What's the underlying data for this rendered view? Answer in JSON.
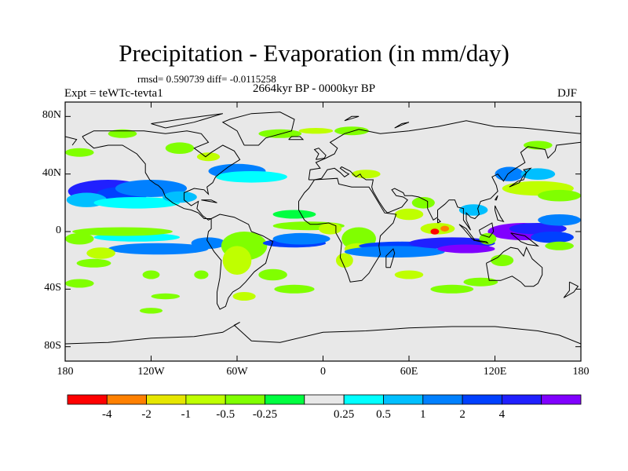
{
  "header": {
    "title": "Precipitation - Evaporation (in mm/day)",
    "stats": "rmsd= 0.590739 diff= -0.0115258",
    "period": "2664kyr BP - 0000kyr BP",
    "experiment": "Expt = teWTc-tevta1",
    "season": "DJF"
  },
  "axes": {
    "y_ticks": [
      {
        "label": "80N",
        "lat": 80
      },
      {
        "label": "40N",
        "lat": 40
      },
      {
        "label": "0",
        "lat": 0
      },
      {
        "label": "40S",
        "lat": -40
      },
      {
        "label": "80S",
        "lat": -80
      }
    ],
    "x_ticks": [
      {
        "label": "180",
        "lon": -180
      },
      {
        "label": "120W",
        "lon": -120
      },
      {
        "label": "60W",
        "lon": -60
      },
      {
        "label": "0",
        "lon": 0
      },
      {
        "label": "60E",
        "lon": 60
      },
      {
        "label": "120E",
        "lon": 120
      },
      {
        "label": "180",
        "lon": 180
      }
    ],
    "lon_range": [
      -180,
      180
    ],
    "lat_range": [
      -90,
      90
    ]
  },
  "colorbar": {
    "colors": [
      "#ff0000",
      "#ff8000",
      "#e6e600",
      "#bfff00",
      "#80ff00",
      "#00ff40",
      "#e8e8e8",
      "#00ffff",
      "#00bfff",
      "#0080ff",
      "#0040ff",
      "#2020ff",
      "#8000ff"
    ],
    "labels": [
      "-4",
      "-2",
      "-1",
      "-0.5",
      "-0.25",
      "0.25",
      "0.5",
      "1",
      "2",
      "4"
    ]
  },
  "map": {
    "background_color": "#e8e8e8",
    "coastline_color": "#000000"
  }
}
